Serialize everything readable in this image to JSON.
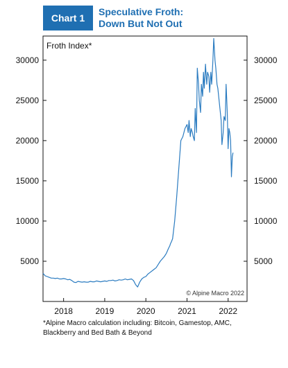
{
  "header": {
    "badge": "Chart 1",
    "title_line1": "Speculative Froth:",
    "title_line2": "Down But Not Out"
  },
  "footnote": {
    "line1": "*Alpine Macro calculation including: Bitcoin, Gamestop, AMC,",
    "line2": "Blackberry and Bed Bath & Beyond"
  },
  "colors": {
    "accent": "#1f6fb2",
    "line": "#2a7bc0"
  },
  "chart_data": {
    "type": "line",
    "title": "Speculative Froth: Down But Not Out",
    "series_label": "Froth Index*",
    "credit": "© Alpine Macro 2022",
    "xlabel": "",
    "ylabel": "",
    "ylim": [
      0,
      33000
    ],
    "xlim": [
      2017.5,
      2022.46
    ],
    "y_ticks": [
      5000,
      10000,
      15000,
      20000,
      25000,
      30000
    ],
    "y_tick_labels": [
      "5000",
      "10000",
      "15000",
      "20000",
      "25000",
      "30000"
    ],
    "x_ticks": [
      2018,
      2019,
      2020,
      2021,
      2022
    ],
    "x_tick_labels": [
      "2018",
      "2019",
      "2020",
      "2021",
      "2022"
    ],
    "grid": false,
    "legend": "none",
    "series": [
      {
        "name": "Froth Index*",
        "x": [
          2017.5,
          2017.55,
          2017.6,
          2017.65,
          2017.7,
          2017.75,
          2017.8,
          2017.85,
          2017.9,
          2017.95,
          2018.0,
          2018.05,
          2018.1,
          2018.15,
          2018.2,
          2018.25,
          2018.3,
          2018.35,
          2018.4,
          2018.45,
          2018.5,
          2018.55,
          2018.6,
          2018.65,
          2018.7,
          2018.75,
          2018.8,
          2018.85,
          2018.9,
          2018.95,
          2019.0,
          2019.05,
          2019.1,
          2019.15,
          2019.2,
          2019.25,
          2019.3,
          2019.35,
          2019.4,
          2019.45,
          2019.5,
          2019.55,
          2019.6,
          2019.65,
          2019.7,
          2019.75,
          2019.8,
          2019.85,
          2019.9,
          2019.95,
          2020.0,
          2020.05,
          2020.1,
          2020.15,
          2020.2,
          2020.25,
          2020.3,
          2020.35,
          2020.4,
          2020.45,
          2020.5,
          2020.55,
          2020.58,
          2020.6,
          2020.62,
          2020.65,
          2020.7,
          2020.75,
          2020.8,
          2020.85,
          2020.9,
          2020.95,
          2021.0,
          2021.03,
          2021.05,
          2021.08,
          2021.1,
          2021.13,
          2021.15,
          2021.18,
          2021.2,
          2021.23,
          2021.25,
          2021.28,
          2021.3,
          2021.33,
          2021.35,
          2021.38,
          2021.4,
          2021.42,
          2021.45,
          2021.48,
          2021.5,
          2021.53,
          2021.55,
          2021.58,
          2021.6,
          2021.63,
          2021.65,
          2021.68,
          2021.7,
          2021.73,
          2021.75,
          2021.78,
          2021.8,
          2021.83,
          2021.85,
          2021.88,
          2021.9,
          2021.93,
          2021.95,
          2021.98,
          2022.0,
          2022.02,
          2022.04,
          2022.06,
          2022.08,
          2022.1,
          2022.12
        ],
        "values": [
          3500,
          3200,
          3100,
          3000,
          2900,
          2900,
          2850,
          2900,
          2800,
          2800,
          2850,
          2800,
          2700,
          2750,
          2600,
          2400,
          2350,
          2500,
          2450,
          2400,
          2450,
          2400,
          2400,
          2500,
          2450,
          2450,
          2550,
          2500,
          2450,
          2500,
          2550,
          2500,
          2600,
          2600,
          2650,
          2550,
          2600,
          2700,
          2650,
          2700,
          2800,
          2700,
          2750,
          2800,
          2600,
          2100,
          1800,
          2400,
          2800,
          3000,
          3100,
          3400,
          3600,
          3800,
          4000,
          4200,
          4600,
          5000,
          5300,
          5600,
          6000,
          6600,
          6900,
          7200,
          7400,
          7800,
          10000,
          13000,
          16500,
          20000,
          20500,
          21500,
          22000,
          21000,
          22500,
          20500,
          21500,
          21000,
          20500,
          20000,
          24000,
          21000,
          29000,
          27000,
          25000,
          23500,
          27000,
          25500,
          28500,
          26500,
          29500,
          27000,
          28500,
          28000,
          26000,
          28500,
          27000,
          30000,
          32700,
          30000,
          29000,
          27000,
          26500,
          25000,
          24000,
          22500,
          19500,
          21000,
          23000,
          22500,
          27000,
          23500,
          19000,
          21500,
          21000,
          20000,
          15500,
          18000,
          18500
        ]
      }
    ]
  }
}
